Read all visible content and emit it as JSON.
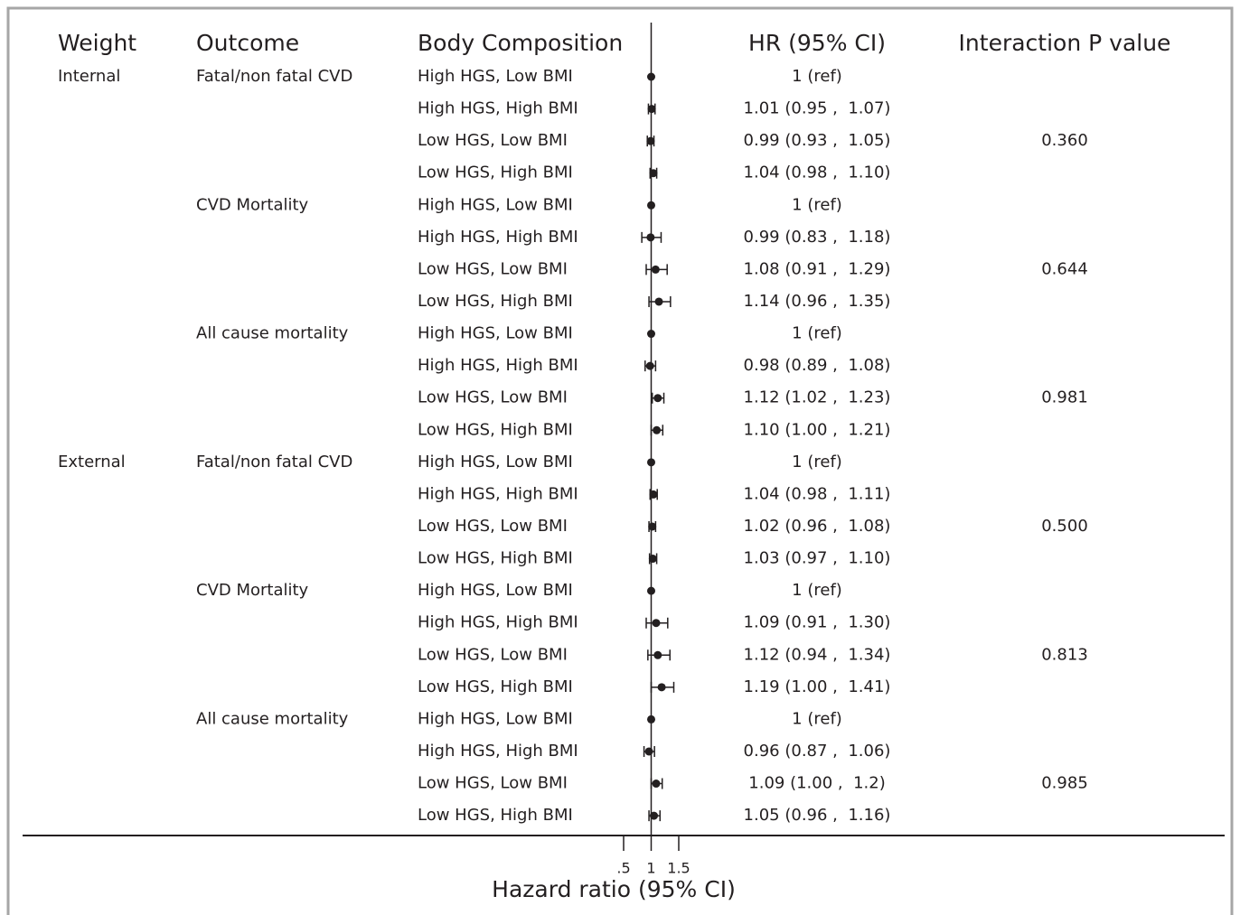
{
  "chart_data": {
    "type": "forest",
    "columns": [
      "Weight",
      "Outcome",
      "Body Composition",
      "HR (95% CI)",
      "Interaction P value"
    ],
    "weight": [
      "Internal",
      null,
      null,
      null,
      null,
      null,
      null,
      null,
      null,
      null,
      null,
      null,
      "External",
      null,
      null,
      null,
      null,
      null,
      null,
      null,
      null,
      null,
      null,
      null
    ],
    "outcome": [
      "Fatal/non fatal CVD",
      null,
      null,
      null,
      "CVD Mortality",
      null,
      null,
      null,
      "All cause mortality",
      null,
      null,
      null,
      "Fatal/non fatal CVD",
      null,
      null,
      null,
      "CVD Mortality",
      null,
      null,
      null,
      "All cause mortality",
      null,
      null,
      null
    ],
    "categories": [
      "High HGS, Low BMI",
      "High HGS, High BMI",
      "Low HGS, Low BMI",
      "Low HGS, High BMI",
      "High HGS, Low BMI",
      "High HGS, High BMI",
      "Low HGS, Low BMI",
      "Low HGS, High BMI",
      "High HGS, Low BMI",
      "High HGS, High BMI",
      "Low HGS, Low BMI",
      "Low HGS, High BMI",
      "High HGS, Low BMI",
      "High HGS, High BMI",
      "Low HGS, Low BMI",
      "Low HGS, High BMI",
      "High HGS, Low BMI",
      "High HGS, High BMI",
      "Low HGS, Low BMI",
      "Low HGS, High BMI",
      "High HGS, Low BMI",
      "High HGS, High BMI",
      "Low HGS, Low BMI",
      "Low HGS, High BMI"
    ],
    "values": [
      1,
      1.01,
      0.99,
      1.04,
      1,
      0.99,
      1.08,
      1.14,
      1,
      0.98,
      1.12,
      1.1,
      1,
      1.04,
      1.02,
      1.03,
      1,
      1.09,
      1.12,
      1.19,
      1,
      0.96,
      1.09,
      1.05
    ],
    "lower": [
      null,
      0.95,
      0.93,
      0.98,
      null,
      0.83,
      0.91,
      0.96,
      null,
      0.89,
      1.02,
      1.0,
      null,
      0.98,
      0.96,
      0.97,
      null,
      0.91,
      0.94,
      1.0,
      null,
      0.87,
      1.0,
      0.96
    ],
    "upper": [
      null,
      1.07,
      1.05,
      1.1,
      null,
      1.18,
      1.29,
      1.35,
      null,
      1.08,
      1.23,
      1.21,
      null,
      1.11,
      1.08,
      1.1,
      null,
      1.3,
      1.34,
      1.41,
      null,
      1.06,
      1.2,
      1.16
    ],
    "value_labels": [
      "1 (ref)",
      "1.01 (0.95 ,  1.07)",
      "0.99 (0.93 ,  1.05)",
      "1.04 (0.98 ,  1.10)",
      "1 (ref)",
      "0.99 (0.83 ,  1.18)",
      "1.08 (0.91 ,  1.29)",
      "1.14 (0.96 ,  1.35)",
      "1 (ref)",
      "0.98 (0.89 ,  1.08)",
      "1.12 (1.02 ,  1.23)",
      "1.10 (1.00 ,  1.21)",
      "1 (ref)",
      "1.04 (0.98 ,  1.11)",
      "1.02 (0.96 ,  1.08)",
      "1.03 (0.97 ,  1.10)",
      "1 (ref)",
      "1.09 (0.91 ,  1.30)",
      "1.12 (0.94 ,  1.34)",
      "1.19 (1.00 ,  1.41)",
      "1 (ref)",
      "0.96 (0.87 ,  1.06)",
      "1.09 (1.00 ,  1.2)",
      "1.05 (0.96 ,  1.16)"
    ],
    "p_values": [
      null,
      null,
      "0.360",
      null,
      null,
      null,
      "0.644",
      null,
      null,
      null,
      "0.981",
      null,
      null,
      null,
      "0.500",
      null,
      null,
      null,
      "0.813",
      null,
      null,
      null,
      "0.985",
      null
    ],
    "x_label": "Hazard ratio (95% CI)",
    "xlim": [
      0.5,
      1.5
    ],
    "xticks": [
      {
        "value": 0.5,
        "label": ".5"
      },
      1,
      1.5
    ],
    "color": "#231f20"
  }
}
